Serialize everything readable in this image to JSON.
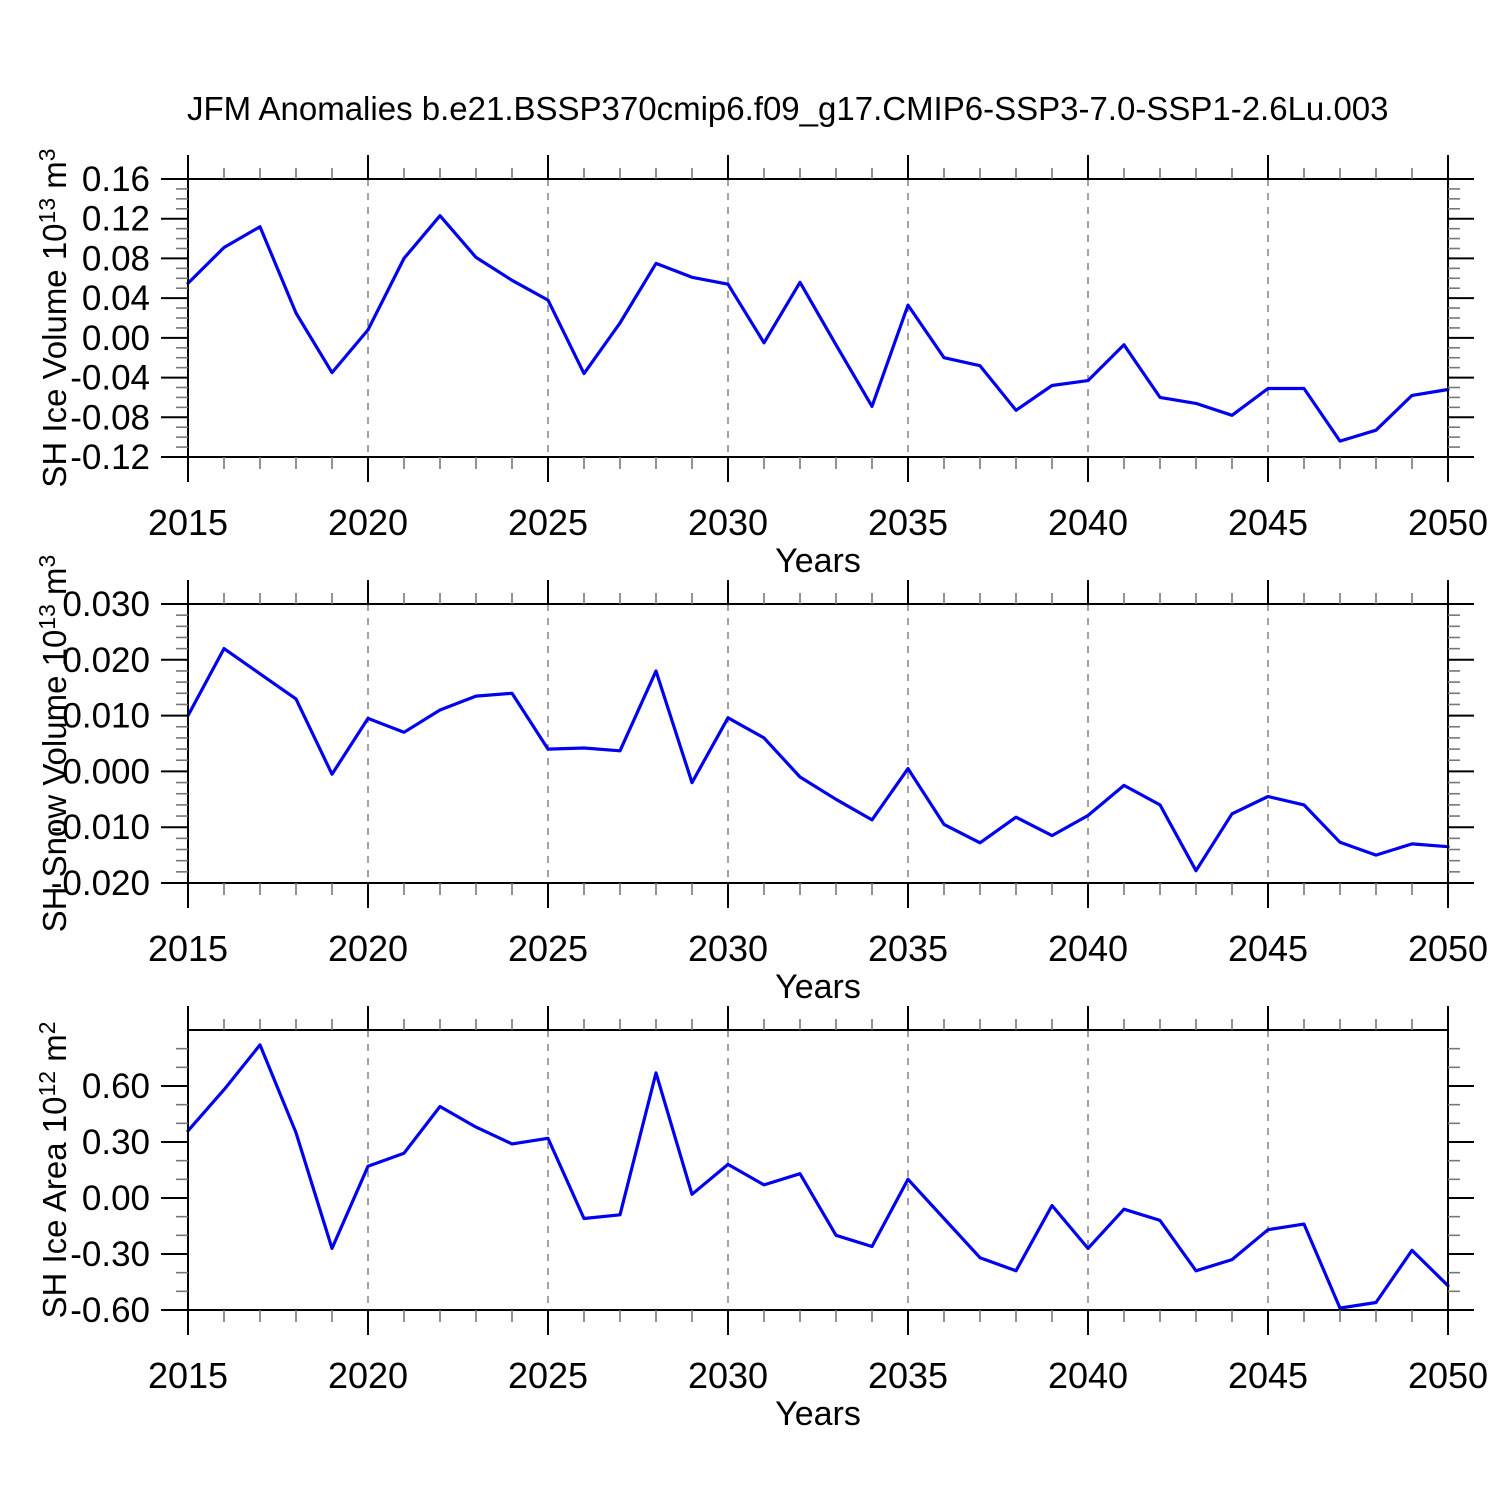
{
  "title": "JFM Anomalies b.e21.BSSP370cmip6.f09_g17.CMIP6-SSP3-7.0-SSP1-2.6Lu.003",
  "x_axis": {
    "label": "Years",
    "tick_labels": [
      "2015",
      "2020",
      "2025",
      "2030",
      "2035",
      "2040",
      "2045",
      "2050"
    ],
    "tick_values": [
      2015,
      2020,
      2025,
      2030,
      2035,
      2040,
      2045,
      2050
    ],
    "minor_step": 1,
    "grid_years": [
      2020,
      2025,
      2030,
      2035,
      2040,
      2045
    ]
  },
  "styles": {
    "line_color": "#0000f0",
    "grid_color": "#999999",
    "axis_color": "#000000",
    "minor_tick_color": "#777777"
  },
  "chart_data": [
    {
      "type": "line",
      "title": "SH Ice Volume 10^13 m^3",
      "ylabel_segments": [
        {
          "t": "SH Ice Volume 10"
        },
        {
          "t": "13",
          "sup": true
        },
        {
          "t": " m"
        },
        {
          "t": "3",
          "sup": true
        }
      ],
      "xlabel": "Years",
      "xlim": [
        2015,
        2050
      ],
      "ylim": [
        -0.12,
        0.16
      ],
      "ytick_minor": 0.01,
      "yticks": [
        {
          "v": 0.16,
          "label": "0.16"
        },
        {
          "v": 0.12,
          "label": "0.12"
        },
        {
          "v": 0.08,
          "label": "0.08"
        },
        {
          "v": 0.04,
          "label": "0.04"
        },
        {
          "v": 0.0,
          "label": "0.00"
        },
        {
          "v": -0.04,
          "label": "-0.04"
        },
        {
          "v": -0.08,
          "label": "-0.08"
        },
        {
          "v": -0.12,
          "label": "-0.12"
        }
      ],
      "x": [
        2015,
        2016,
        2017,
        2018,
        2019,
        2020,
        2021,
        2022,
        2023,
        2024,
        2025,
        2026,
        2027,
        2028,
        2029,
        2030,
        2031,
        2032,
        2033,
        2034,
        2035,
        2036,
        2037,
        2038,
        2039,
        2040,
        2041,
        2042,
        2043,
        2044,
        2045,
        2046,
        2047,
        2048,
        2049,
        2050
      ],
      "values": [
        0.055,
        0.091,
        0.112,
        0.025,
        -0.035,
        0.008,
        0.08,
        0.123,
        0.081,
        0.058,
        0.038,
        -0.036,
        0.015,
        0.075,
        0.061,
        0.054,
        -0.005,
        0.056,
        -0.007,
        -0.069,
        0.033,
        -0.02,
        -0.028,
        -0.073,
        -0.048,
        -0.043,
        -0.007,
        -0.06,
        -0.066,
        -0.078,
        -0.051,
        -0.051,
        -0.104,
        -0.093,
        -0.058,
        -0.052
      ]
    },
    {
      "type": "line",
      "title": "SH Snow Volume 10^13 m^3",
      "ylabel_segments": [
        {
          "t": "SH Snow Volume 10"
        },
        {
          "t": "13",
          "sup": true
        },
        {
          "t": " m"
        },
        {
          "t": "3",
          "sup": true
        }
      ],
      "xlabel": "Years",
      "xlim": [
        2015,
        2050
      ],
      "ylim": [
        -0.02,
        0.03
      ],
      "ytick_minor": 0.002,
      "yticks": [
        {
          "v": 0.03,
          "label": "0.030"
        },
        {
          "v": 0.02,
          "label": "0.020"
        },
        {
          "v": 0.01,
          "label": "0.010"
        },
        {
          "v": 0.0,
          "label": "0.000"
        },
        {
          "v": -0.01,
          "label": "-0.010"
        },
        {
          "v": -0.02,
          "label": "-0.020"
        }
      ],
      "x": [
        2015,
        2016,
        2017,
        2018,
        2019,
        2020,
        2021,
        2022,
        2023,
        2024,
        2025,
        2026,
        2027,
        2028,
        2029,
        2030,
        2031,
        2032,
        2033,
        2034,
        2035,
        2036,
        2037,
        2038,
        2039,
        2040,
        2041,
        2042,
        2043,
        2044,
        2045,
        2046,
        2047,
        2048,
        2049,
        2050
      ],
      "values": [
        0.01,
        0.022,
        0.0175,
        0.013,
        -0.0005,
        0.0095,
        0.007,
        0.011,
        0.0135,
        0.014,
        0.004,
        0.0042,
        0.0037,
        0.018,
        -0.002,
        0.0096,
        0.006,
        -0.001,
        -0.005,
        -0.0087,
        0.0005,
        -0.0095,
        -0.0128,
        -0.0082,
        -0.0115,
        -0.0079,
        -0.0025,
        -0.006,
        -0.0178,
        -0.0076,
        -0.0045,
        -0.006,
        -0.0127,
        -0.015,
        -0.013,
        -0.0135
      ]
    },
    {
      "type": "line",
      "title": "SH Ice Area 10^12 m^2",
      "ylabel_segments": [
        {
          "t": "SH Ice Area 10"
        },
        {
          "t": "12",
          "sup": true
        },
        {
          "t": " m"
        },
        {
          "t": "2",
          "sup": true
        }
      ],
      "xlabel": "Years",
      "xlim": [
        2015,
        2050
      ],
      "ylim": [
        -0.6,
        0.9
      ],
      "ytick_minor": 0.1,
      "yticks": [
        {
          "v": 0.6,
          "label": "0.60"
        },
        {
          "v": 0.3,
          "label": "0.30"
        },
        {
          "v": 0.0,
          "label": "0.00"
        },
        {
          "v": -0.3,
          "label": "-0.30"
        },
        {
          "v": -0.6,
          "label": "-0.60"
        }
      ],
      "x": [
        2015,
        2016,
        2017,
        2018,
        2019,
        2020,
        2021,
        2022,
        2023,
        2024,
        2025,
        2026,
        2027,
        2028,
        2029,
        2030,
        2031,
        2032,
        2033,
        2034,
        2035,
        2036,
        2037,
        2038,
        2039,
        2040,
        2041,
        2042,
        2043,
        2044,
        2045,
        2046,
        2047,
        2048,
        2049,
        2050
      ],
      "values": [
        0.36,
        0.58,
        0.82,
        0.35,
        -0.27,
        0.17,
        0.24,
        0.49,
        0.38,
        0.29,
        0.32,
        -0.11,
        -0.09,
        0.67,
        0.02,
        0.18,
        0.07,
        0.13,
        -0.2,
        -0.26,
        0.1,
        -0.11,
        -0.32,
        -0.39,
        -0.04,
        -0.27,
        -0.06,
        -0.12,
        -0.39,
        -0.33,
        -0.17,
        -0.14,
        -0.59,
        -0.56,
        -0.28,
        -0.47
      ]
    }
  ]
}
